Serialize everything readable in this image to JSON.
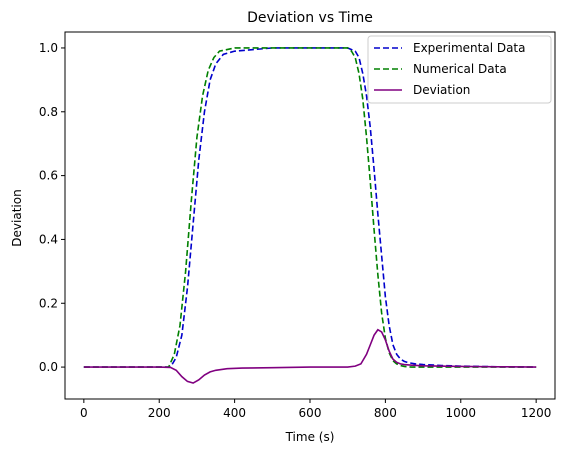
{
  "chart_data": {
    "type": "line",
    "title": "Deviation vs Time",
    "xlabel": "Time (s)",
    "ylabel": "Deviation",
    "xlim": [
      -50,
      1250
    ],
    "ylim": [
      -0.1,
      1.05
    ],
    "xticks": [
      0,
      200,
      400,
      600,
      800,
      1000,
      1200
    ],
    "yticks": [
      0.0,
      0.2,
      0.4,
      0.6,
      0.8,
      1.0
    ],
    "grid": false,
    "legend_position": "top-right",
    "series": [
      {
        "name": "Experimental Data",
        "color": "#0000cc",
        "style": "dashed",
        "x": [
          0,
          200,
          230,
          245,
          260,
          275,
          290,
          305,
          320,
          335,
          350,
          370,
          400,
          450,
          500,
          600,
          700,
          720,
          730,
          740,
          750,
          760,
          770,
          780,
          790,
          800,
          810,
          820,
          830,
          840,
          850,
          860,
          880,
          900,
          950,
          1000,
          1100,
          1200
        ],
        "y": [
          0,
          0,
          0.0,
          0.03,
          0.1,
          0.25,
          0.45,
          0.65,
          0.8,
          0.9,
          0.95,
          0.98,
          0.99,
          0.995,
          1.0,
          1.0,
          1.0,
          0.99,
          0.97,
          0.92,
          0.85,
          0.75,
          0.62,
          0.48,
          0.35,
          0.22,
          0.13,
          0.07,
          0.04,
          0.025,
          0.018,
          0.014,
          0.01,
          0.008,
          0.005,
          0.003,
          0.001,
          0.0
        ]
      },
      {
        "name": "Numerical Data",
        "color": "#008000",
        "style": "dashed",
        "x": [
          0,
          200,
          225,
          240,
          255,
          270,
          285,
          300,
          315,
          330,
          345,
          360,
          380,
          400,
          450,
          500,
          600,
          700,
          710,
          720,
          730,
          740,
          750,
          760,
          770,
          780,
          790,
          800,
          810,
          820,
          830,
          840,
          850,
          870,
          900,
          1000,
          1100,
          1200
        ],
        "y": [
          0,
          0,
          0.0,
          0.04,
          0.13,
          0.3,
          0.52,
          0.72,
          0.85,
          0.93,
          0.97,
          0.99,
          0.995,
          1.0,
          1.0,
          1.0,
          1.0,
          1.0,
          0.99,
          0.97,
          0.92,
          0.84,
          0.72,
          0.58,
          0.43,
          0.29,
          0.17,
          0.09,
          0.045,
          0.02,
          0.01,
          0.005,
          0.002,
          0.0,
          0.0,
          0.0,
          0.0,
          0.0
        ]
      },
      {
        "name": "Deviation",
        "color": "#800080",
        "style": "solid",
        "x": [
          0,
          100,
          200,
          230,
          245,
          260,
          275,
          290,
          305,
          320,
          335,
          350,
          380,
          420,
          500,
          600,
          700,
          720,
          735,
          750,
          760,
          770,
          780,
          790,
          800,
          810,
          820,
          830,
          840,
          850,
          870,
          900,
          1000,
          1100,
          1200
        ],
        "y": [
          0,
          0,
          0,
          -0.001,
          -0.01,
          -0.03,
          -0.045,
          -0.05,
          -0.04,
          -0.025,
          -0.015,
          -0.01,
          -0.005,
          -0.003,
          -0.002,
          0.0,
          0.0,
          0.003,
          0.01,
          0.04,
          0.07,
          0.1,
          0.117,
          0.11,
          0.085,
          0.05,
          0.025,
          0.015,
          0.01,
          0.008,
          0.006,
          0.004,
          0.002,
          0.001,
          0.0
        ]
      }
    ]
  }
}
